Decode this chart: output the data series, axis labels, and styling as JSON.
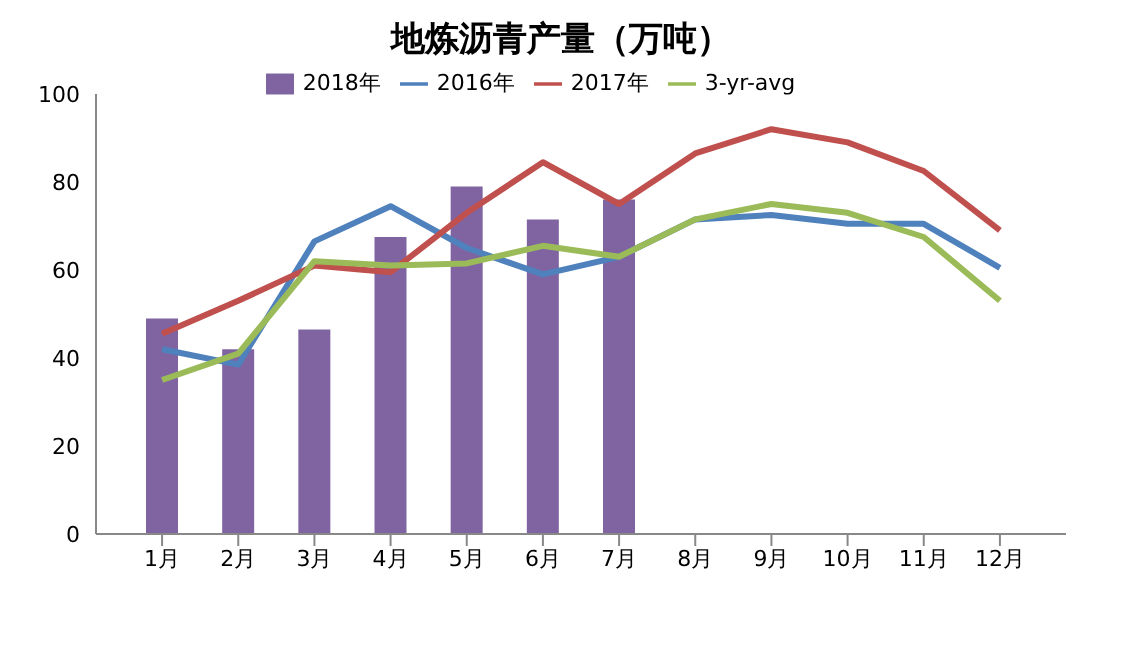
{
  "chart_data": {
    "type": "bar",
    "title": "地炼沥青产量（万吨）",
    "categories": [
      "1月",
      "2月",
      "3月",
      "4月",
      "5月",
      "6月",
      "7月",
      "8月",
      "9月",
      "10月",
      "11月",
      "12月"
    ],
    "series": [
      {
        "name": "2018年",
        "color": "#8064a2",
        "values": [
          49,
          42,
          46.5,
          67.5,
          79,
          71.5,
          76,
          null,
          null,
          null,
          null,
          null
        ]
      },
      {
        "name": "2016年",
        "type": "line",
        "color": "#4f81bd",
        "values": [
          42,
          38.5,
          66.5,
          74.5,
          65,
          59,
          63,
          71.5,
          72.5,
          70.5,
          70.5,
          60.5
        ]
      },
      {
        "name": "2017年",
        "type": "line",
        "color": "#c0504d",
        "values": [
          45.5,
          53,
          61,
          59.5,
          73,
          84.5,
          75,
          86.5,
          92,
          89,
          82.5,
          69
        ]
      },
      {
        "name": "3-yr-avg",
        "type": "line",
        "color": "#9bbb59",
        "values": [
          35,
          41,
          62,
          61,
          61.5,
          65.5,
          63,
          71.5,
          75,
          73,
          67.5,
          53
        ]
      }
    ],
    "ylim": [
      0,
      100
    ],
    "yticks": [
      0,
      20,
      40,
      60,
      80,
      100
    ],
    "grid": false,
    "legend": "top",
    "marker": "none"
  }
}
